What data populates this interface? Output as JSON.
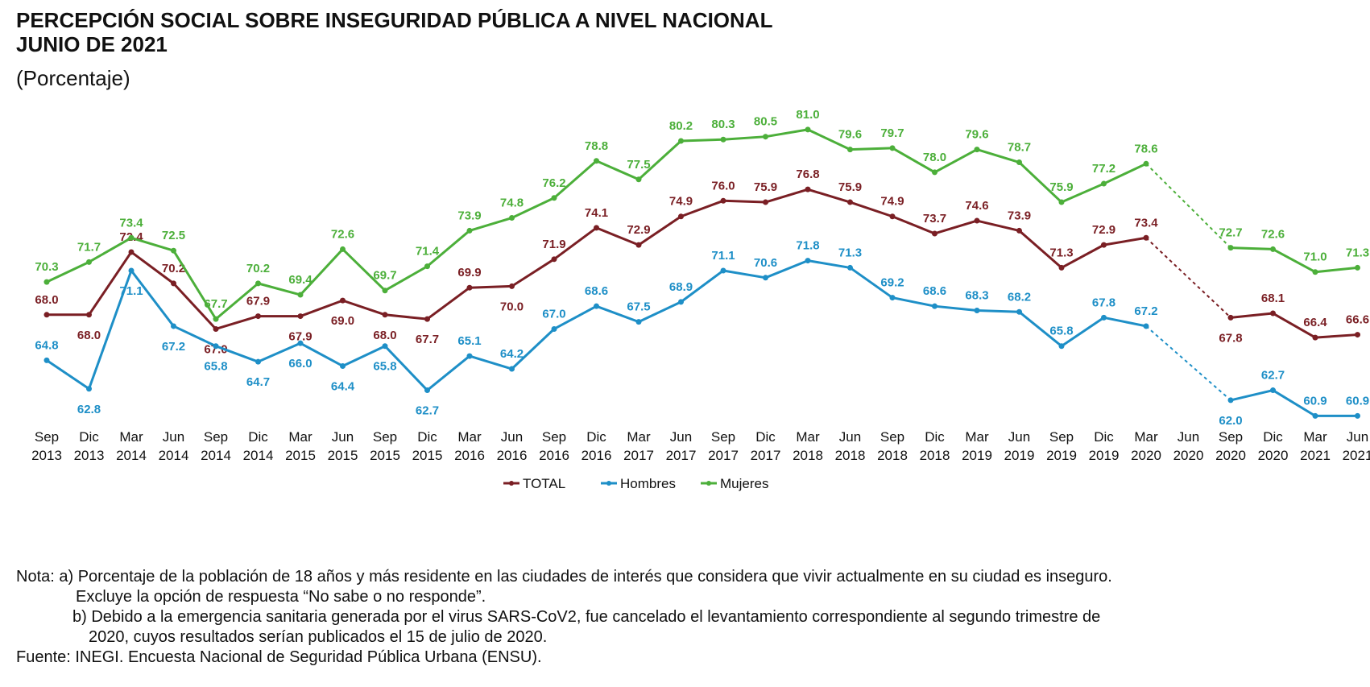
{
  "header": {
    "title": "PERCEPCIÓN SOCIAL SOBRE INSEGURIDAD PÚBLICA A NIVEL NACIONAL",
    "subtitle": "JUNIO DE 2021",
    "unit": "(Porcentaje)"
  },
  "notes": {
    "a_line1": "Nota: a) Porcentaje de la población de 18 años y más residente en las ciudades de interés que considera que vivir actualmente en su ciudad es inseguro.",
    "a_line2": "Excluye la opción de respuesta “No sabe o no responde”.",
    "b_line1": "b) Debido a la emergencia sanitaria generada por el virus SARS-CoV2, fue cancelado el levantamiento correspondiente al segundo trimestre de",
    "b_line2": "2020, cuyos resultados serían publicados el 15 de julio de 2020.",
    "source": "Fuente: INEGI. Encuesta Nacional de Seguridad Pública Urbana (ENSU)."
  },
  "chart_data": {
    "type": "line",
    "title": "PERCEPCIÓN SOCIAL SOBRE INSEGURIDAD PÚBLICA A NIVEL NACIONAL",
    "subtitle": "JUNIO DE 2021",
    "ylabel": "(Porcentaje)",
    "grid": false,
    "legend": "bottom-center",
    "categories": [
      [
        "Sep",
        "2013"
      ],
      [
        "Dic",
        "2013"
      ],
      [
        "Mar",
        "2014"
      ],
      [
        "Jun",
        "2014"
      ],
      [
        "Sep",
        "2014"
      ],
      [
        "Dic",
        "2014"
      ],
      [
        "Mar",
        "2015"
      ],
      [
        "Jun",
        "2015"
      ],
      [
        "Sep",
        "2015"
      ],
      [
        "Dic",
        "2015"
      ],
      [
        "Mar",
        "2016"
      ],
      [
        "Jun",
        "2016"
      ],
      [
        "Sep",
        "2016"
      ],
      [
        "Dic",
        "2016"
      ],
      [
        "Mar",
        "2017"
      ],
      [
        "Jun",
        "2017"
      ],
      [
        "Sep",
        "2017"
      ],
      [
        "Dic",
        "2017"
      ],
      [
        "Mar",
        "2018"
      ],
      [
        "Jun",
        "2018"
      ],
      [
        "Sep",
        "2018"
      ],
      [
        "Dic",
        "2018"
      ],
      [
        "Mar",
        "2019"
      ],
      [
        "Jun",
        "2019"
      ],
      [
        "Sep",
        "2019"
      ],
      [
        "Dic",
        "2019"
      ],
      [
        "Mar",
        "2020"
      ],
      [
        "Jun",
        "2020"
      ],
      [
        "Sep",
        "2020"
      ],
      [
        "Dic",
        "2020"
      ],
      [
        "Mar",
        "2021"
      ],
      [
        "Jun",
        "2021"
      ]
    ],
    "series": [
      {
        "name": "TOTAL",
        "color": "#7a1f24",
        "values": [
          68.0,
          68.0,
          72.4,
          70.2,
          67.0,
          67.9,
          67.9,
          69.0,
          68.0,
          67.7,
          69.9,
          70.0,
          71.9,
          74.1,
          72.9,
          74.9,
          76.0,
          75.9,
          76.8,
          75.9,
          74.9,
          73.7,
          74.6,
          73.9,
          71.3,
          72.9,
          73.4,
          null,
          67.8,
          68.1,
          66.4,
          66.6
        ]
      },
      {
        "name": "Hombres",
        "color": "#1e8fc7",
        "values": [
          64.8,
          62.8,
          71.1,
          67.2,
          65.8,
          64.7,
          66.0,
          64.4,
          65.8,
          62.7,
          65.1,
          64.2,
          67.0,
          68.6,
          67.5,
          68.9,
          71.1,
          70.6,
          71.8,
          71.3,
          69.2,
          68.6,
          68.3,
          68.2,
          65.8,
          67.8,
          67.2,
          null,
          62.0,
          62.7,
          60.9,
          60.9
        ]
      },
      {
        "name": "Mujeres",
        "color": "#4caf3a",
        "values": [
          70.3,
          71.7,
          73.4,
          72.5,
          67.7,
          70.2,
          69.4,
          72.6,
          69.7,
          71.4,
          73.9,
          74.8,
          76.2,
          78.8,
          77.5,
          80.2,
          80.3,
          80.5,
          81.0,
          79.6,
          79.7,
          78.0,
          79.6,
          78.7,
          75.9,
          77.2,
          78.6,
          null,
          72.7,
          72.6,
          71.0,
          71.3
        ]
      }
    ]
  }
}
